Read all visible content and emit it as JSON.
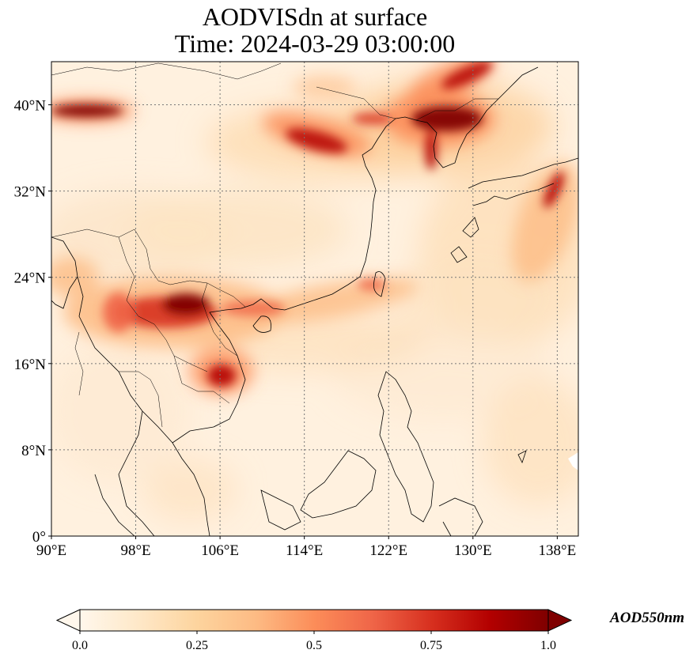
{
  "figure": {
    "title_line1": "AODVISdn at surface",
    "title_line2": "Time: 2024-03-29 03:00:00"
  },
  "map": {
    "lon_range": [
      90,
      140
    ],
    "lat_range": [
      0,
      44
    ],
    "lon_ticks": [
      {
        "value": 90,
        "label": "90°E"
      },
      {
        "value": 98,
        "label": "98°E"
      },
      {
        "value": 106,
        "label": "106°E"
      },
      {
        "value": 114,
        "label": "114°E"
      },
      {
        "value": 122,
        "label": "122°E"
      },
      {
        "value": 130,
        "label": "130°E"
      },
      {
        "value": 138,
        "label": "138°E"
      }
    ],
    "lat_ticks": [
      {
        "value": 0,
        "label": "0°"
      },
      {
        "value": 8,
        "label": "8°N"
      },
      {
        "value": 16,
        "label": "16°N"
      },
      {
        "value": 24,
        "label": "24°N"
      },
      {
        "value": 32,
        "label": "32°N"
      },
      {
        "value": 40,
        "label": "40°N"
      }
    ],
    "gridlines": true,
    "colormap": "OrRd",
    "colormap_stops": [
      "#fff7ec",
      "#fee8c8",
      "#fdd49e",
      "#fdbb84",
      "#fc8d59",
      "#ef6548",
      "#d7301f",
      "#b30000",
      "#7f0000"
    ],
    "aerosol_plumes": [
      {
        "lon": 103,
        "lat": 21,
        "value": 1.0
      },
      {
        "lon": 99,
        "lat": 22,
        "value": 0.9
      },
      {
        "lon": 107,
        "lat": 15.5,
        "value": 0.95
      },
      {
        "lon": 93,
        "lat": 40.3,
        "value": 1.0
      },
      {
        "lon": 126.5,
        "lat": 39.5,
        "value": 1.0
      },
      {
        "lon": 129,
        "lat": 42.5,
        "value": 0.85
      },
      {
        "lon": 115,
        "lat": 37,
        "value": 0.8
      },
      {
        "lon": 138,
        "lat": 34,
        "value": 0.85
      },
      {
        "lon": 114,
        "lat": 22,
        "value": 0.6
      },
      {
        "lon": 136,
        "lat": 28,
        "value": 0.55
      }
    ]
  },
  "colorbar": {
    "label": "AOD550nm",
    "min": 0.0,
    "max": 1.0,
    "extend": "both",
    "ticks": [
      {
        "value": 0.0,
        "label": "0.0"
      },
      {
        "value": 0.25,
        "label": "0.25"
      },
      {
        "value": 0.5,
        "label": "0.5"
      },
      {
        "value": 0.75,
        "label": "0.75"
      },
      {
        "value": 1.0,
        "label": "1.0"
      }
    ]
  }
}
